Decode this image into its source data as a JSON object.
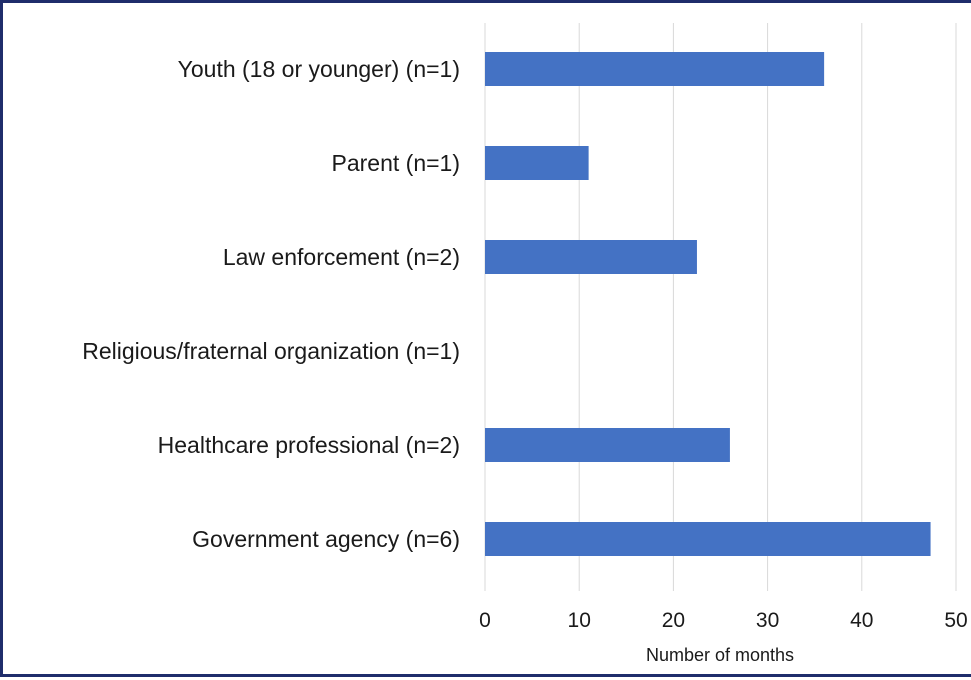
{
  "chart_data": {
    "type": "bar",
    "orientation": "horizontal",
    "categories": [
      "Youth (18 or younger) (n=1)",
      "Parent (n=1)",
      "Law enforcement (n=2)",
      "Religious/fraternal organization (n=1)",
      "Healthcare professional (n=2)",
      "Government agency (n=6)"
    ],
    "values": [
      36,
      11,
      22.5,
      0,
      26,
      47.3
    ],
    "xlabel": "Number of months",
    "ylabel": "",
    "xlim": [
      0,
      50
    ],
    "xticks": [
      "0",
      "10",
      "20",
      "30",
      "40",
      "50"
    ],
    "grid": "vertical",
    "legend": "none",
    "bar_color": "#4472c4",
    "grid_color": "#d9d9d9",
    "frame_color": "#1f2d6b"
  }
}
